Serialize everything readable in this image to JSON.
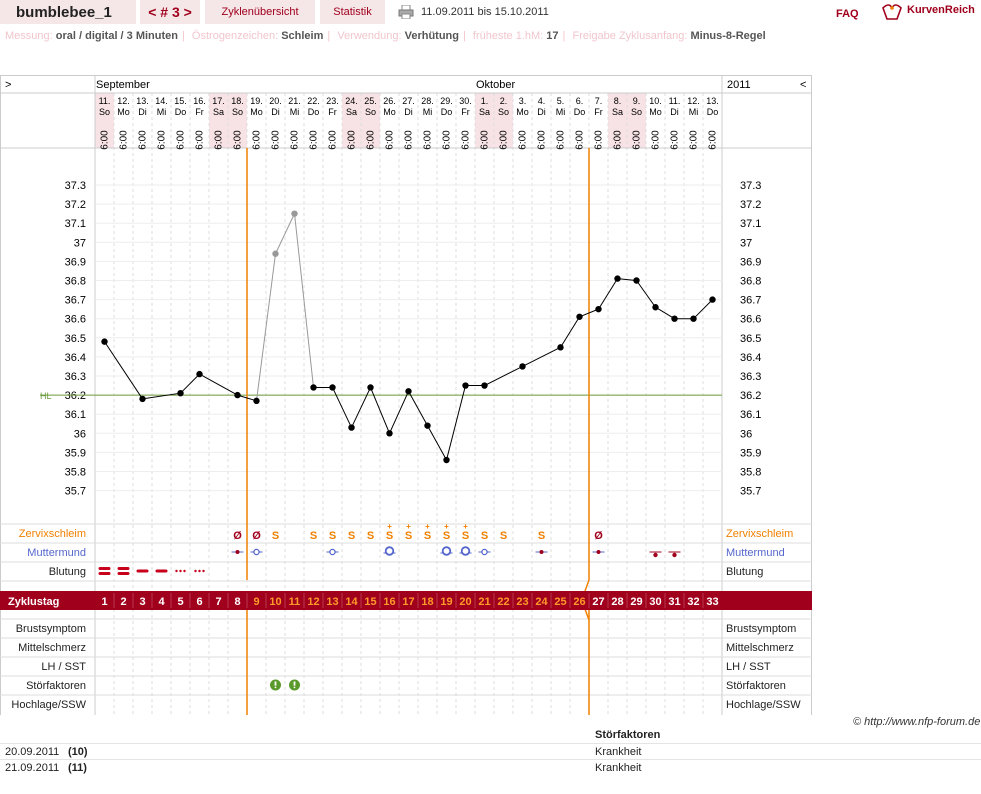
{
  "header": {
    "username": "bumblebee_1",
    "cycle_nav": "< # 3 >",
    "tab_overview": "Zyklenübersicht",
    "tab_stats": "Statistik",
    "date_range": "11.09.2011 bis 15.10.2011",
    "faq": "FAQ",
    "logo_text": "KurvenReich"
  },
  "meta": {
    "messung_label": "Messung:",
    "messung_value": "oral / digital / 3 Minuten",
    "oestrogen_label": "Östrogenzeichen:",
    "oestrogen_value": "Schleim",
    "verwendung_label": "Verwendung:",
    "verwendung_value": "Verhütung",
    "hm_label": "früheste 1.hM:",
    "hm_value": "17",
    "freigabe_label": "Freigabe Zyklusanfang:",
    "freigabe_value": "Minus-8-Regel"
  },
  "chart_data": {
    "type": "line",
    "nav_left": ">",
    "nav_right": "<",
    "months": [
      {
        "label": "September",
        "start_index": 0
      },
      {
        "label": "Oktober",
        "start_index": 20
      }
    ],
    "year": "2011",
    "days": [
      {
        "n": "11.",
        "w": "So",
        "we": true
      },
      {
        "n": "12.",
        "w": "Mo",
        "we": false
      },
      {
        "n": "13.",
        "w": "Di",
        "we": false
      },
      {
        "n": "14.",
        "w": "Mi",
        "we": false
      },
      {
        "n": "15.",
        "w": "Do",
        "we": false
      },
      {
        "n": "16.",
        "w": "Fr",
        "we": false
      },
      {
        "n": "17.",
        "w": "Sa",
        "we": true
      },
      {
        "n": "18.",
        "w": "So",
        "we": true
      },
      {
        "n": "19.",
        "w": "Mo",
        "we": false
      },
      {
        "n": "20.",
        "w": "Di",
        "we": false
      },
      {
        "n": "21.",
        "w": "Mi",
        "we": false
      },
      {
        "n": "22.",
        "w": "Do",
        "we": false
      },
      {
        "n": "23.",
        "w": "Fr",
        "we": false
      },
      {
        "n": "24.",
        "w": "Sa",
        "we": true
      },
      {
        "n": "25.",
        "w": "So",
        "we": true
      },
      {
        "n": "26.",
        "w": "Mo",
        "we": false
      },
      {
        "n": "27.",
        "w": "Di",
        "we": false
      },
      {
        "n": "28.",
        "w": "Mi",
        "we": false
      },
      {
        "n": "29.",
        "w": "Do",
        "we": false
      },
      {
        "n": "30.",
        "w": "Fr",
        "we": false
      },
      {
        "n": "1.",
        "w": "Sa",
        "we": true
      },
      {
        "n": "2.",
        "w": "So",
        "we": true
      },
      {
        "n": "3.",
        "w": "Mo",
        "we": false
      },
      {
        "n": "4.",
        "w": "Di",
        "we": false
      },
      {
        "n": "5.",
        "w": "Mi",
        "we": false
      },
      {
        "n": "6.",
        "w": "Do",
        "we": false
      },
      {
        "n": "7.",
        "w": "Fr",
        "we": false
      },
      {
        "n": "8.",
        "w": "Sa",
        "we": true
      },
      {
        "n": "9.",
        "w": "So",
        "we": true
      },
      {
        "n": "10.",
        "w": "Mo",
        "we": false
      },
      {
        "n": "11.",
        "w": "Di",
        "we": false
      },
      {
        "n": "12.",
        "w": "Mi",
        "we": false
      },
      {
        "n": "13.",
        "w": "Do",
        "we": false
      }
    ],
    "time": "6:00",
    "y_ticks": [
      "37.3",
      "37.2",
      "37.1",
      "37",
      "36.9",
      "36.8",
      "36.7",
      "36.6",
      "36.5",
      "36.4",
      "36.3",
      "36.2",
      "36.1",
      "36",
      "35.9",
      "35.8",
      "35.7"
    ],
    "ylim": [
      35.7,
      37.3
    ],
    "hl_label": "HL",
    "hl_value": 36.2,
    "temperatures": [
      36.48,
      null,
      36.18,
      null,
      36.21,
      36.31,
      null,
      36.2,
      36.17,
      36.94,
      37.15,
      36.24,
      36.24,
      36.03,
      36.24,
      36.0,
      36.22,
      36.04,
      35.86,
      36.25,
      36.25,
      null,
      36.35,
      null,
      36.45,
      36.61,
      36.65,
      36.81,
      36.8,
      36.66,
      36.6,
      36.6,
      36.7
    ],
    "excluded_indices": [
      9,
      10
    ],
    "marker_lines_after_index": [
      7,
      25
    ],
    "rows": {
      "zervix": "Zervixschleim",
      "muttermund": "Muttermund",
      "blutung": "Blutung",
      "zyklustag": "Zyklustag",
      "brust": "Brustsymptom",
      "mittel": "Mittelschmerz",
      "lh": "LH / SST",
      "stoer": "Störfaktoren",
      "hoch": "Hochlage/SSW"
    },
    "zervix_marks": [
      "",
      "",
      "",
      "",
      "",
      "",
      "",
      "Ø",
      "Ø",
      "S",
      "",
      "S",
      "S",
      "S",
      "S",
      "S",
      "S",
      "S",
      "S",
      "S",
      "S",
      "S",
      "",
      "S",
      "",
      "",
      "Ø",
      "",
      "",
      "",
      "",
      "",
      ""
    ],
    "zervix_plus": [
      15,
      16,
      17,
      18,
      19
    ],
    "muttermund_marks": [
      "",
      "",
      "",
      "",
      "",
      "",
      "",
      "dot",
      "o",
      "",
      "",
      "",
      "o",
      "",
      "",
      "O",
      "",
      "",
      "O",
      "O",
      "o",
      "",
      "",
      "dot",
      "",
      "",
      "dot",
      "",
      "",
      "low",
      "low",
      "",
      ""
    ],
    "blutung_marks": [
      "heavy",
      "heavy",
      "medium",
      "medium",
      "light",
      "light",
      "",
      "",
      "",
      "",
      "",
      "",
      "",
      "",
      "",
      "",
      "",
      "",
      "",
      "",
      "",
      "",
      "",
      "",
      "",
      "",
      "",
      "",
      "",
      "",
      "",
      "",
      ""
    ],
    "stoer_days": [
      9,
      10
    ],
    "cycle_days": [
      "1",
      "2",
      "3",
      "4",
      "5",
      "6",
      "7",
      "8",
      "9",
      "10",
      "11",
      "12",
      "13",
      "14",
      "15",
      "16",
      "17",
      "18",
      "19",
      "20",
      "21",
      "22",
      "23",
      "24",
      "25",
      "26",
      "27",
      "28",
      "29",
      "30",
      "31",
      "32",
      "33"
    ],
    "colors": {
      "accent": "#a0001c",
      "orange": "#f08000",
      "hl": "#6b9a3a",
      "blue": "#5566cc",
      "weekend": "#f7e2e5"
    }
  },
  "footer": {
    "copyright": "© http://www.nfp-forum.de",
    "col_header": "Störfaktoren",
    "entries": [
      {
        "date": "20.09.2011",
        "num": "(10)",
        "text": "Krankheit"
      },
      {
        "date": "21.09.2011",
        "num": "(11)",
        "text": "Krankheit"
      }
    ]
  }
}
